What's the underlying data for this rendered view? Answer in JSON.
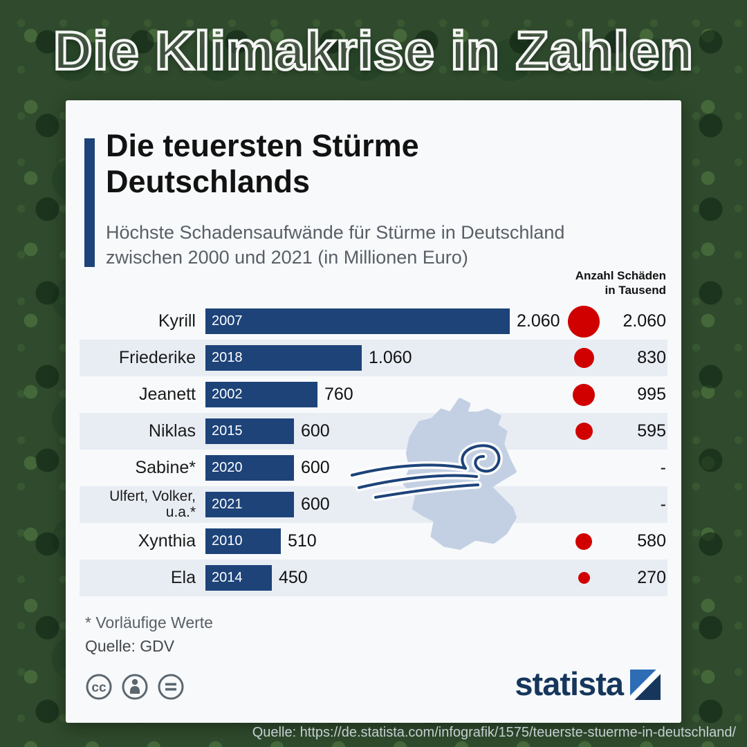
{
  "page": {
    "header_title": "Die Klimakrise in Zahlen",
    "bottom_caption": "Quelle: https://de.statista.com/infografik/1575/teuerste-stuerme-in-deutschland/"
  },
  "card": {
    "title_line1": "Die teuersten Stürme",
    "title_line2": "Deutschlands",
    "subtitle": "Höchste Schadensaufwände für Stürme in Deutschland zwischen 2000 und 2021 (in Millionen Euro)",
    "right_header_line1": "Anzahl Schäden",
    "right_header_line2": "in Tausend",
    "footnote": "* Vorläufige Werte",
    "source": "Quelle: GDV",
    "logo_text": "statista",
    "license_icons": [
      "cc-icon",
      "attribution-icon",
      "nd-icon"
    ],
    "colors": {
      "accent_navy": "#1d4379",
      "band_bg": "#e8edf4",
      "card_bg": "#f7f9fb",
      "map_blue": "#c3cfe2"
    }
  },
  "chart_data": {
    "type": "bar",
    "title": "Die teuersten Stürme Deutschlands",
    "subtitle": "Höchste Schadensaufwände für Stürme in Deutschland zwischen 2000 und 2021 (in Millionen Euro)",
    "unit": "Millionen Euro",
    "xlim": [
      0,
      2060
    ],
    "max_damage": 2060,
    "max_claims": 2060,
    "bar_color": "#1d4379",
    "dot_color": "#d00000",
    "rows": [
      {
        "name": "Kyrill",
        "year": "2007",
        "damage": 2060,
        "damage_label": "2.060",
        "claims": 2060,
        "claims_label": "2.060"
      },
      {
        "name": "Friederike",
        "year": "2018",
        "damage": 1060,
        "damage_label": "1.060",
        "claims": 830,
        "claims_label": "830"
      },
      {
        "name": "Jeanett",
        "year": "2002",
        "damage": 760,
        "damage_label": "760",
        "claims": 995,
        "claims_label": "995"
      },
      {
        "name": "Niklas",
        "year": "2015",
        "damage": 600,
        "damage_label": "600",
        "claims": 595,
        "claims_label": "595"
      },
      {
        "name": "Sabine*",
        "year": "2020",
        "damage": 600,
        "damage_label": "600",
        "claims": null,
        "claims_label": "-"
      },
      {
        "name": "Ulfert, Volker, u.a.*",
        "year": "2021",
        "damage": 600,
        "damage_label": "600",
        "claims": null,
        "claims_label": "-"
      },
      {
        "name": "Xynthia",
        "year": "2010",
        "damage": 510,
        "damage_label": "510",
        "claims": 580,
        "claims_label": "580"
      },
      {
        "name": "Ela",
        "year": "2014",
        "damage": 450,
        "damage_label": "450",
        "claims": 270,
        "claims_label": "270"
      }
    ]
  }
}
